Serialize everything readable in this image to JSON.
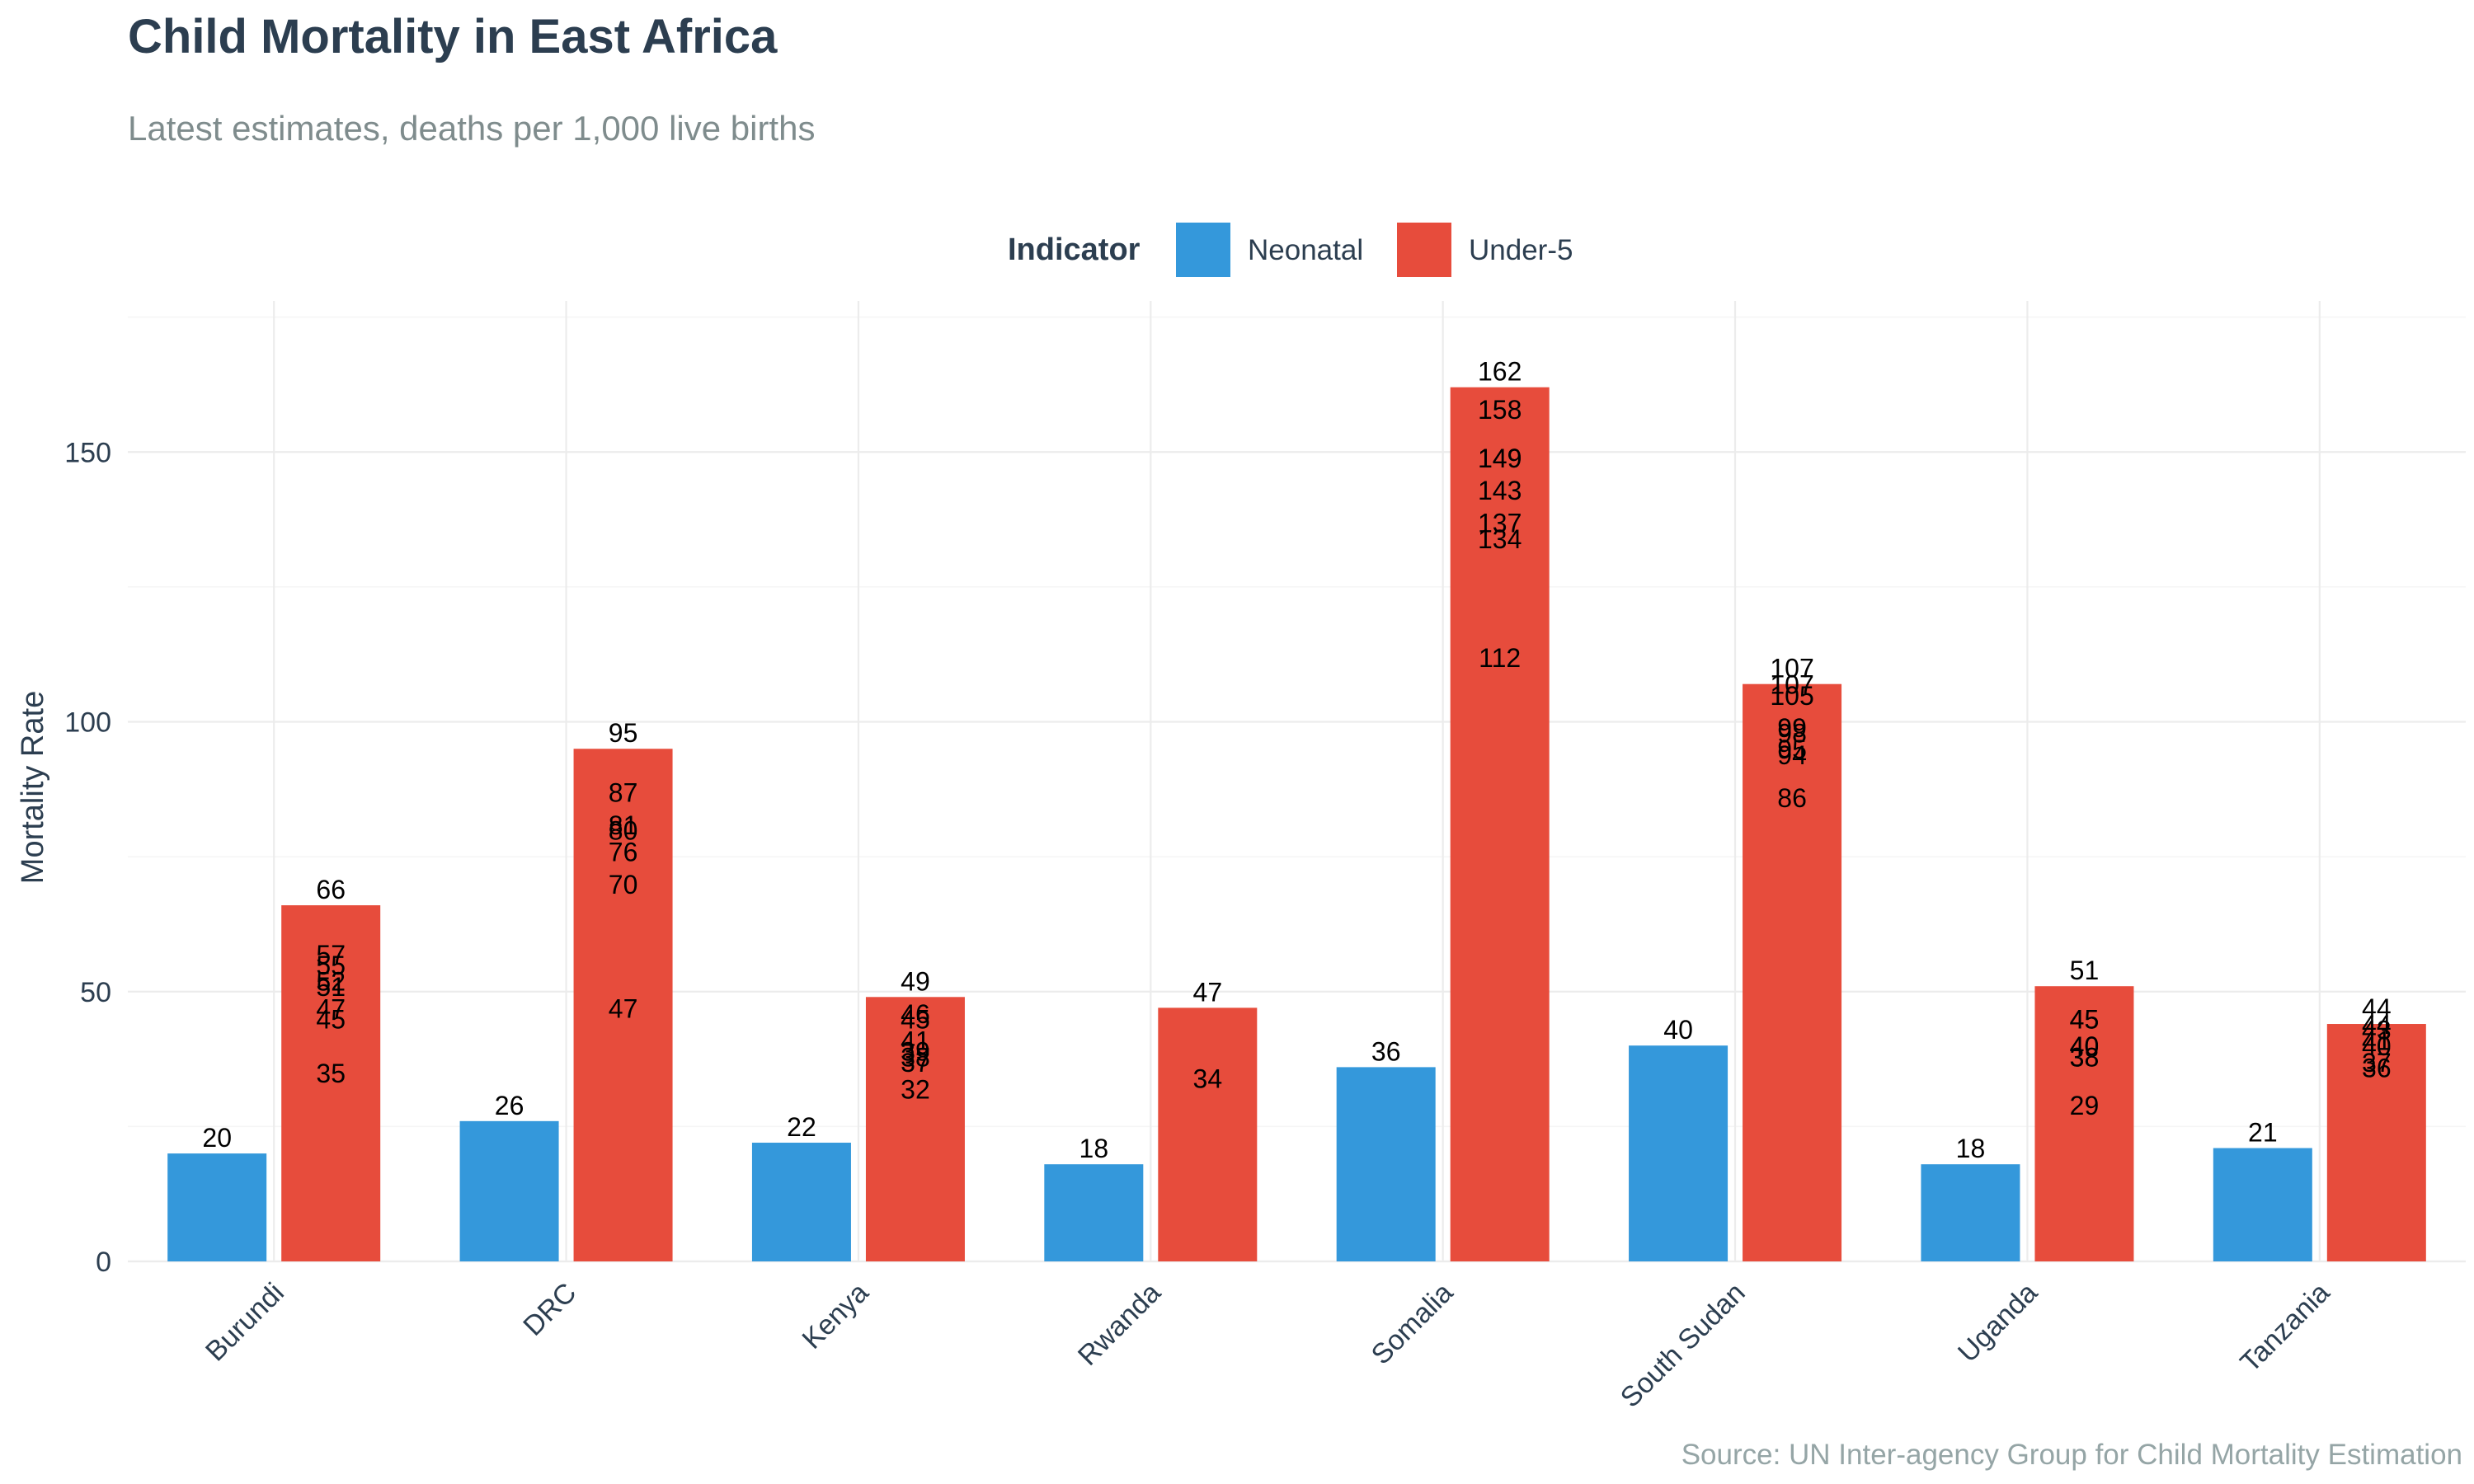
{
  "chart_data": {
    "type": "bar",
    "title": "Child Mortality in East Africa",
    "subtitle": "Latest estimates, deaths per 1,000 live births",
    "caption": "Source: UN Inter-agency Group for Child Mortality Estimation",
    "xlabel": "",
    "ylabel": "Mortality Rate",
    "ylim": [
      0,
      178
    ],
    "yticks": [
      0,
      50,
      100,
      150
    ],
    "grid": true,
    "legend": {
      "title": "Indicator",
      "position": "top-center"
    },
    "categories": [
      "Burundi",
      "DRC",
      "Kenya",
      "Rwanda",
      "Somalia",
      "South Sudan",
      "Uganda",
      "Tanzania"
    ],
    "series": [
      {
        "name": "Neonatal",
        "color": "#3498db",
        "values": [
          20,
          26,
          22,
          18,
          36,
          40,
          18,
          21
        ]
      },
      {
        "name": "Under-5",
        "color": "#e74c3c",
        "values": [
          66,
          95,
          49,
          47,
          162,
          107,
          51,
          44
        ]
      }
    ],
    "overlay_labels": [
      [
        57,
        55,
        52,
        51,
        47,
        45,
        35
      ],
      [
        87,
        81,
        80,
        76,
        70,
        47
      ],
      [
        46,
        45,
        41,
        39,
        38,
        37,
        32
      ],
      [
        34
      ],
      [
        158,
        149,
        149,
        143,
        137,
        134,
        112
      ],
      [
        107,
        105,
        99,
        98,
        95,
        94,
        86
      ],
      [
        45,
        45,
        40,
        40,
        38,
        38,
        29
      ],
      [
        44,
        43,
        41,
        40,
        37,
        36
      ]
    ]
  }
}
